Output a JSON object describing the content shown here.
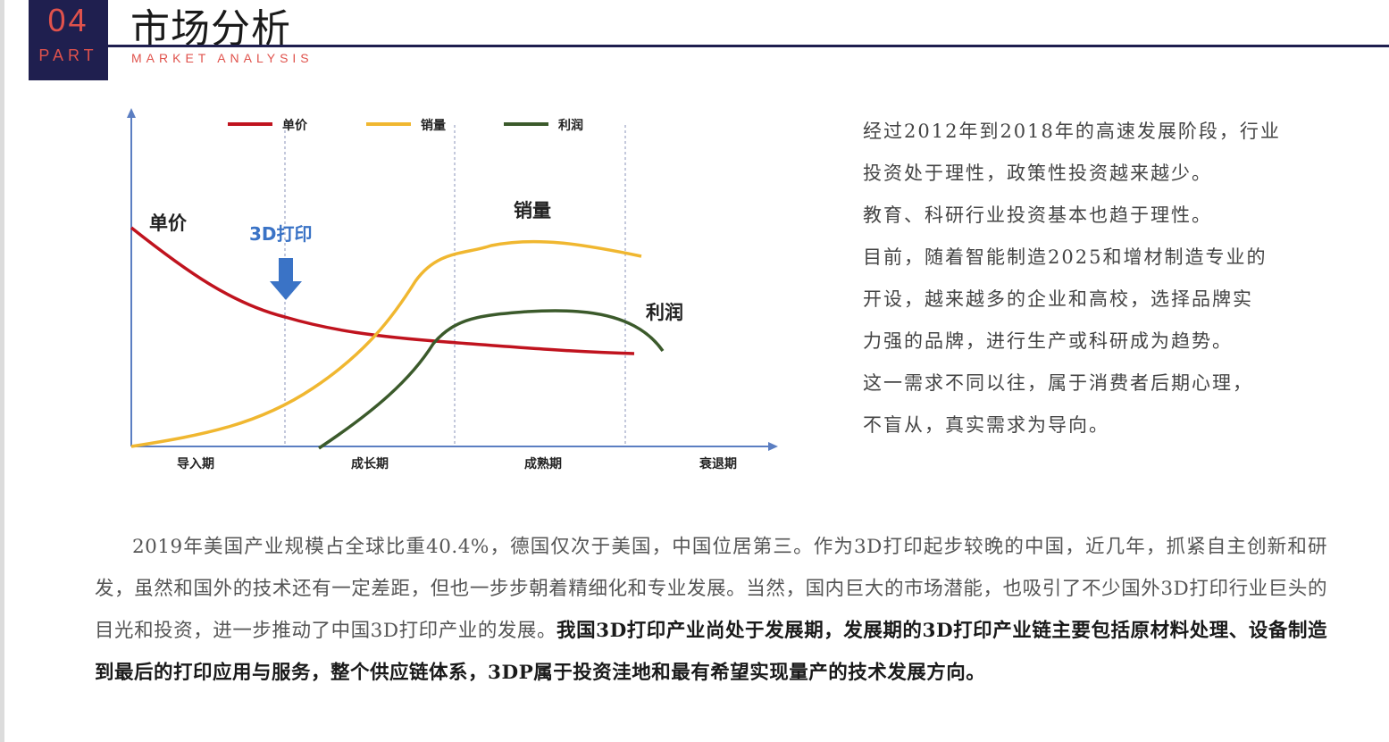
{
  "header": {
    "number": "04",
    "part": "PART",
    "title": "市场分析",
    "subtitle": "MARKET ANALYSIS",
    "accent_color": "#e0524c",
    "navy_color": "#1f1f4f"
  },
  "chart": {
    "legend": [
      {
        "label": "单价",
        "color": "#c0131e"
      },
      {
        "label": "销量",
        "color": "#f0b730"
      },
      {
        "label": "利润",
        "color": "#3b5a2b"
      }
    ],
    "curve_labels": {
      "price": "单价",
      "sales": "销量",
      "profit": "利润"
    },
    "marker_label": "3D打印",
    "marker_color": "#3a73c6",
    "stages": [
      "导入期",
      "成长期",
      "成熟期",
      "衰退期"
    ]
  },
  "side_text": [
    "经过2012年到2018年的高速发展阶段，行业",
    "投资处于理性，政策性投资越来越少。",
    "教育、科研行业投资基本也趋于理性。",
    "目前，随着智能制造2025和增材制造专业的",
    "开设，越来越多的企业和高校，选择品牌实",
    "力强的品牌，进行生产或科研成为趋势。",
    "这一需求不同以往，属于消费者后期心理，",
    "不盲从，真实需求为导向。"
  ],
  "body": {
    "normal": "2019年美国产业规模占全球比重40.4%，德国仅次于美国，中国位居第三。作为3D打印起步较晚的中国，近几年，抓紧自主创新和研发，虽然和国外的技术还有一定差距，但也一步步朝着精细化和专业发展。当然，国内巨大的市场潜能，也吸引了不少国外3D打印行业巨头的目光和投资，进一步推动了中国3D打印产业的发展。",
    "bold": "我国3D打印产业尚处于发展期，发展期的3D打印产业链主要包括原材料处理、设备制造到最后的打印应用与服务，整个供应链体系，3DP属于投资洼地和最有希望实现量产的技术发展方向。"
  }
}
